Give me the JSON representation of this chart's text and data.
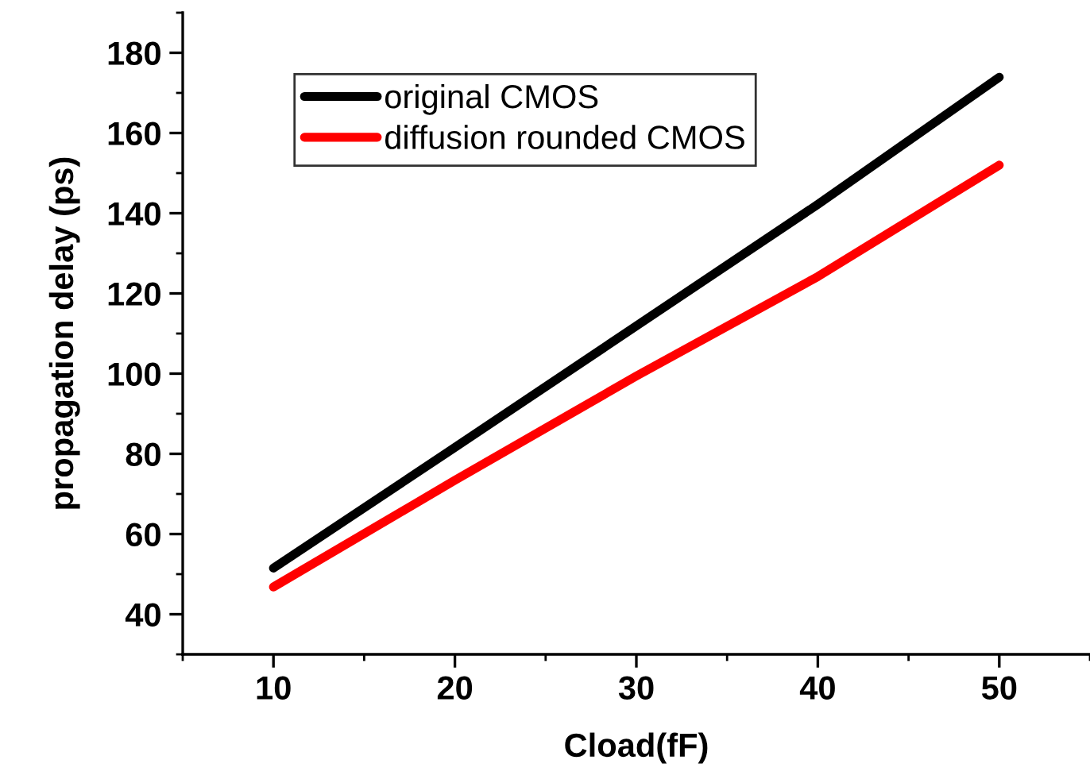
{
  "chart_data": {
    "type": "line",
    "xlabel": "Cload(fF)",
    "ylabel": "propagation delay (ps)",
    "x": [
      10,
      20,
      30,
      40,
      50
    ],
    "series": [
      {
        "name": "original CMOS",
        "color": "#000000",
        "values": [
          51.5,
          81.6,
          111.9,
          142.2,
          173.9
        ]
      },
      {
        "name": "diffusion rounded CMOS",
        "color": "#ff0000",
        "values": [
          46.8,
          73.4,
          99.4,
          124.2,
          152
        ]
      }
    ],
    "xlim": [
      5,
      55
    ],
    "ylim": [
      30,
      190
    ],
    "xticks": [
      10,
      20,
      30,
      40,
      50
    ],
    "yticks": [
      40,
      60,
      80,
      100,
      120,
      140,
      160,
      180
    ],
    "grid": false,
    "legend": "top left",
    "marker": "none",
    "line_style": "solid"
  }
}
